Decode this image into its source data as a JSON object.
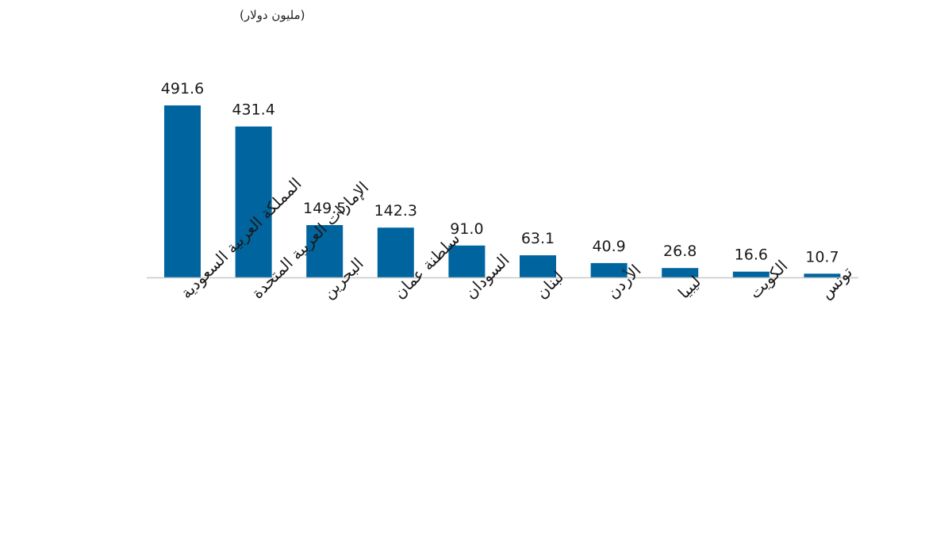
{
  "chart_data": {
    "type": "bar",
    "unit_label": "(مليون دولار)",
    "categories": [
      "المملكة العربية السعودية",
      "الإمارات العربية المتحدة",
      "البحرين",
      "سلطنة عمان",
      "السودان",
      "لبنان",
      "الأردن",
      "ليبيا",
      "الكويت",
      "تونس"
    ],
    "values": [
      491.6,
      431.4,
      149.5,
      142.3,
      91.0,
      63.1,
      40.9,
      26.8,
      16.6,
      10.7
    ],
    "value_labels": [
      "491.6",
      "431.4",
      "149.5",
      "142.3",
      "91.0",
      "63.1",
      "40.9",
      "26.8",
      "16.6",
      "10.7"
    ],
    "ylim": [
      0,
      491.6
    ],
    "bar_color": "#00659e",
    "grid": false,
    "legend": "none"
  }
}
